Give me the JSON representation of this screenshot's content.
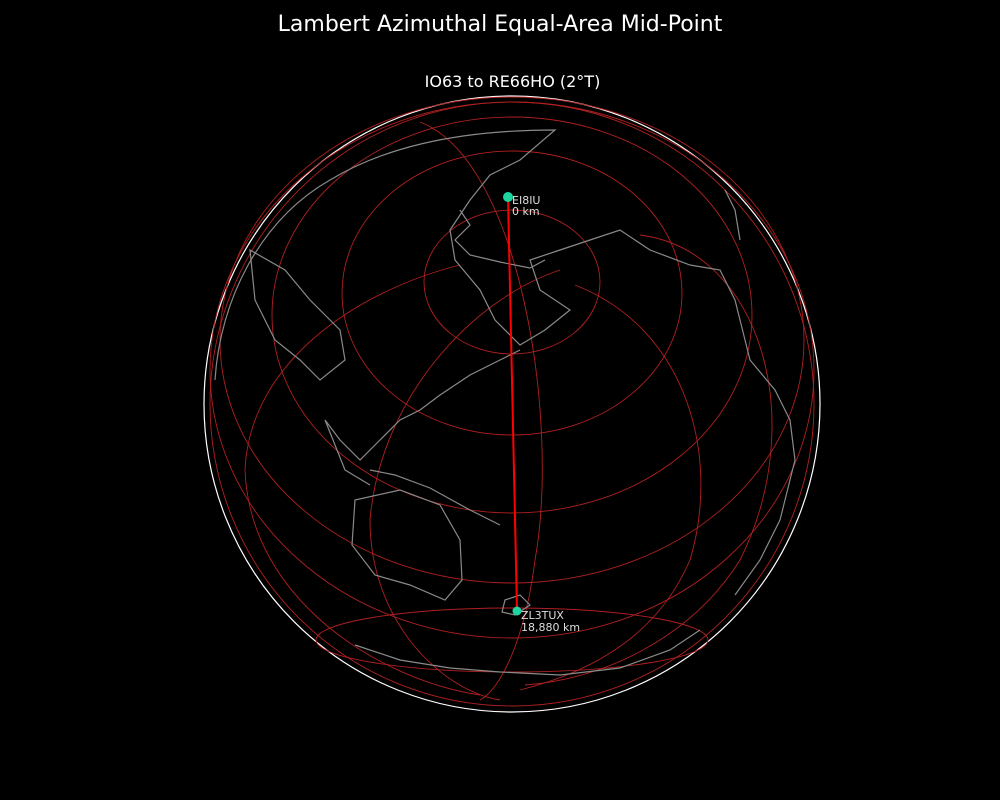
{
  "title": "Lambert Azimuthal Equal-Area Mid-Point",
  "subtitle": "IO63 to RE66HO (2°T)",
  "path_color": "#ff0000",
  "marker_color": "#1ed4a0",
  "ring_color": "#b02020",
  "coast_color": "#8a8a8a",
  "stations": [
    {
      "call": "EI8IU",
      "distance": "0 km"
    },
    {
      "call": "ZL3TUX",
      "distance": "18,880 km"
    }
  ]
}
